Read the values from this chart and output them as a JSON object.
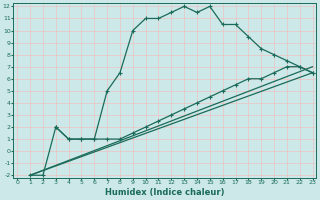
{
  "xlabel": "Humidex (Indice chaleur)",
  "bg_color": "#cce8e8",
  "grid_color": "#e8c8c8",
  "line_color": "#1a6b5a",
  "xlim": [
    0,
    23
  ],
  "ylim": [
    -2,
    12
  ],
  "xticks": [
    0,
    1,
    2,
    3,
    4,
    5,
    6,
    7,
    8,
    9,
    10,
    11,
    12,
    13,
    14,
    15,
    16,
    17,
    18,
    19,
    20,
    21,
    22,
    23
  ],
  "yticks": [
    -2,
    -1,
    0,
    1,
    2,
    3,
    4,
    5,
    6,
    7,
    8,
    9,
    10,
    11,
    12
  ],
  "curve1_x": [
    1,
    2,
    3,
    4,
    5,
    6,
    7,
    8,
    9,
    10,
    11,
    12,
    13,
    14,
    15,
    16,
    17,
    18,
    19,
    20,
    21,
    22,
    23
  ],
  "curve1_y": [
    -2,
    -2,
    2,
    1,
    1,
    1,
    5,
    6.5,
    10,
    11,
    11,
    11.5,
    12,
    11.5,
    12,
    10.5,
    10.5,
    9.5,
    8.5,
    8,
    7.5,
    7,
    6.5
  ],
  "curve2_x": [
    3,
    4,
    5,
    6,
    7,
    8,
    9,
    10,
    11,
    12,
    13,
    14,
    15,
    16,
    17,
    18,
    19,
    20,
    21,
    22,
    23
  ],
  "curve2_y": [
    2,
    1,
    1,
    1,
    1,
    1,
    1.5,
    2,
    2.5,
    3,
    3.5,
    4,
    4.5,
    5,
    5.5,
    6,
    6,
    6.5,
    7,
    7,
    6.5
  ],
  "line3_x": [
    1,
    23
  ],
  "line3_y": [
    -2,
    6.5
  ],
  "line4_x": [
    1,
    23
  ],
  "line4_y": [
    -2,
    7
  ]
}
